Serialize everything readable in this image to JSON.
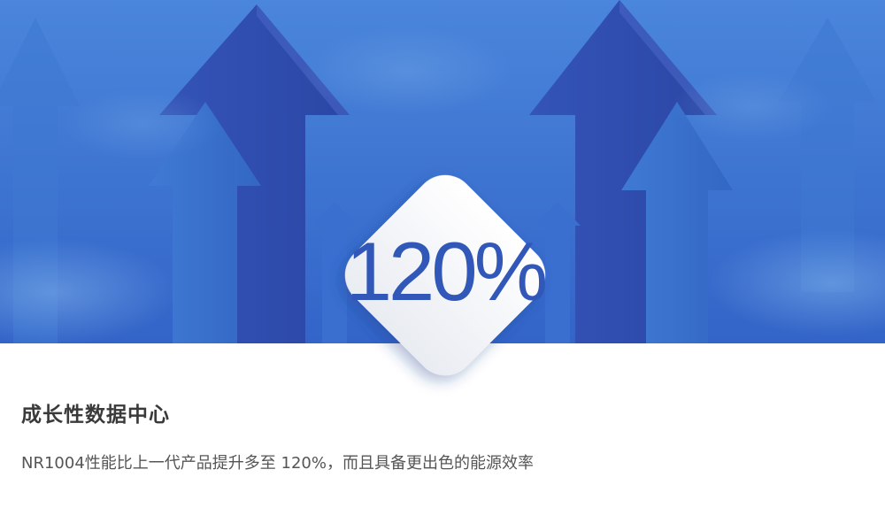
{
  "hero": {
    "stat": "120%",
    "colors": {
      "sky_top": "#4a86db",
      "sky_bottom": "#3366cc",
      "arrow_dark": "#2f4fb3",
      "arrow_light": "#3b74cf",
      "stat_text": "#3157b8"
    }
  },
  "content": {
    "title": "成长性数据中心",
    "description": "NR1004性能比上一代产品提升多至 120%，而且具备更出色的能源效率"
  }
}
